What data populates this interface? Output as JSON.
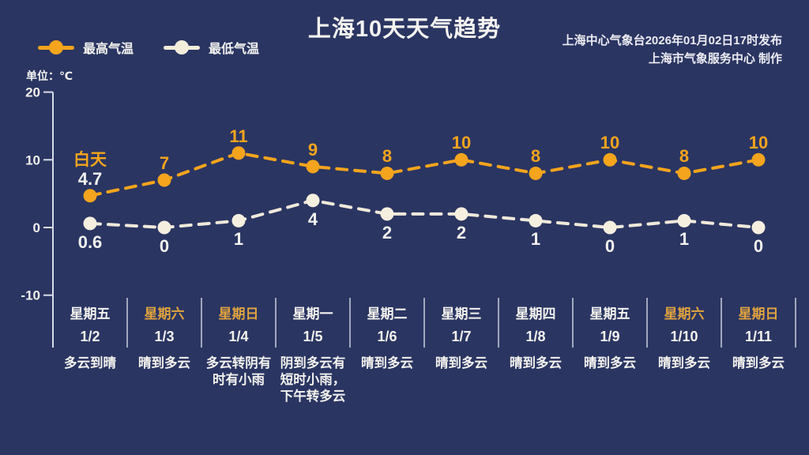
{
  "title": "上海10天天气趋势",
  "publisher": {
    "line1": "上海中心气象台2026年01月02日17时发布",
    "line2": "上海市气象服务中心 制作"
  },
  "legend": {
    "high_label": "最高气温",
    "low_label": "最低气温"
  },
  "unit_label": "单位：℃",
  "annotations": {
    "daytime_label": "白天"
  },
  "colors": {
    "background": "#2a3562",
    "high_series": "#f4a41d",
    "low_series": "#f5efdf",
    "weekend_text": "#dfa23f",
    "text": "#f3f2ee",
    "axis": "#d8dce8"
  },
  "chart_data": {
    "type": "line",
    "title": "上海10天天气趋势",
    "xlabel": "",
    "ylabel": "℃",
    "ylim": [
      -10,
      20
    ],
    "yticks": [
      20,
      10,
      0,
      -10
    ],
    "grid": false,
    "legend_position": "top-left",
    "line_style": "dashed",
    "categories": [
      "1/2",
      "1/3",
      "1/4",
      "1/5",
      "1/6",
      "1/7",
      "1/8",
      "1/9",
      "1/10",
      "1/11"
    ],
    "series": [
      {
        "name": "最高气温",
        "color": "#f4a41d",
        "values": [
          4.7,
          7,
          11,
          9,
          8,
          10,
          8,
          10,
          8,
          10
        ]
      },
      {
        "name": "最低气温",
        "color": "#f5efdf",
        "values": [
          0.6,
          0,
          1,
          4,
          2,
          2,
          1,
          0,
          1,
          0
        ]
      }
    ],
    "days": [
      {
        "weekday": "星期五",
        "date": "1/2",
        "weather": "多云到晴",
        "weekend": false
      },
      {
        "weekday": "星期六",
        "date": "1/3",
        "weather": "晴到多云",
        "weekend": true
      },
      {
        "weekday": "星期日",
        "date": "1/4",
        "weather": "多云转阴有\n时有小雨",
        "weekend": true
      },
      {
        "weekday": "星期一",
        "date": "1/5",
        "weather": "阴到多云有\n短时小雨，\n下午转多云",
        "weekend": false
      },
      {
        "weekday": "星期二",
        "date": "1/6",
        "weather": "晴到多云",
        "weekend": false
      },
      {
        "weekday": "星期三",
        "date": "1/7",
        "weather": "晴到多云",
        "weekend": false
      },
      {
        "weekday": "星期四",
        "date": "1/8",
        "weather": "晴到多云",
        "weekend": false
      },
      {
        "weekday": "星期五",
        "date": "1/9",
        "weather": "晴到多云",
        "weekend": false
      },
      {
        "weekday": "星期六",
        "date": "1/10",
        "weather": "晴到多云",
        "weekend": true
      },
      {
        "weekday": "星期日",
        "date": "1/11",
        "weather": "晴到多云",
        "weekend": true
      }
    ]
  }
}
